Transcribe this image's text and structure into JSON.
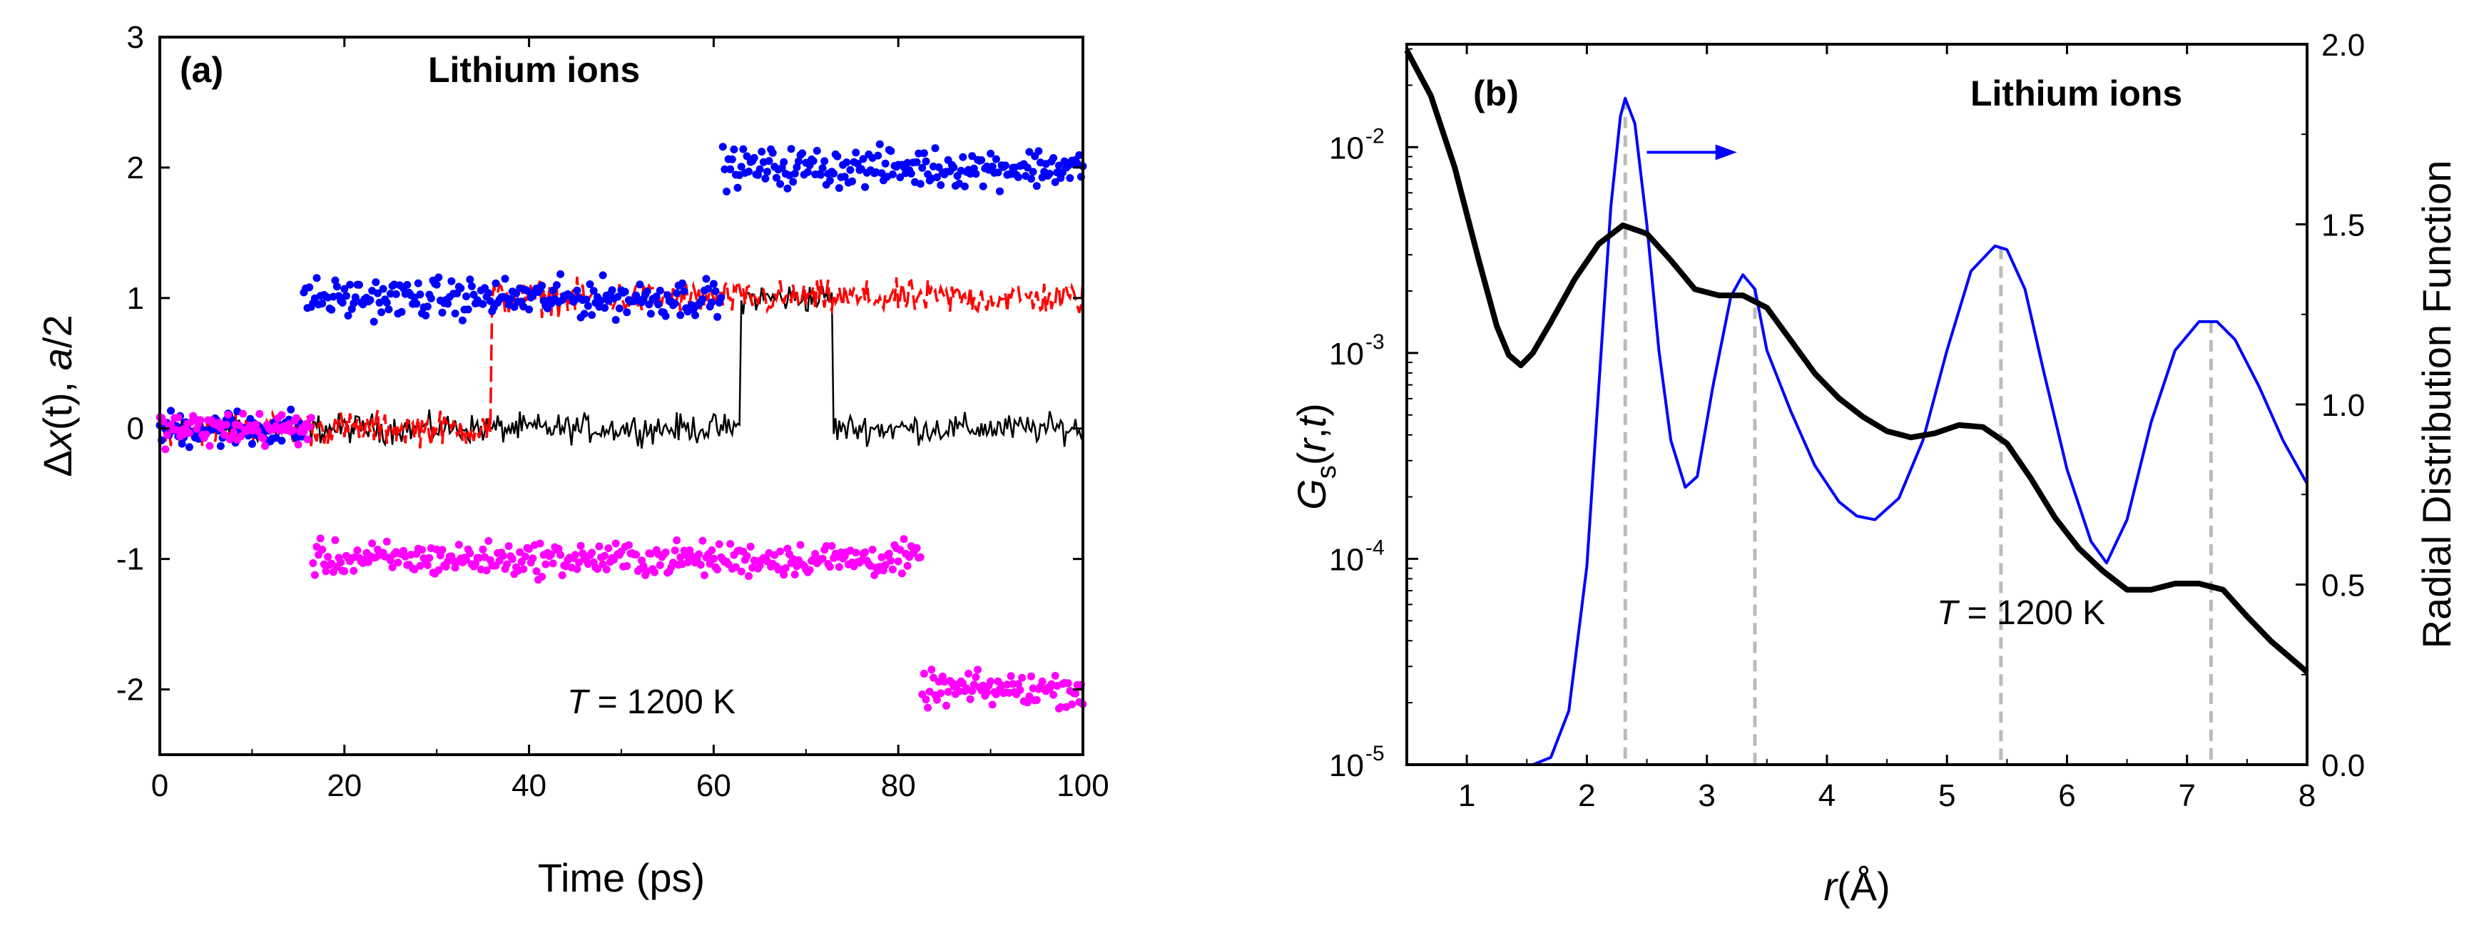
{
  "chart_data": [
    {
      "panel": "(a)",
      "type": "line",
      "title": "Lithium ions",
      "annotation": "T = 1200 K",
      "annotation_parts": {
        "var": "T",
        "rest": " = 1200 K"
      },
      "xlabel": "Time (ps)",
      "ylabel_parts": {
        "pre": "Δ",
        "x": "x",
        "post": "(t), ",
        "a": "a",
        "tail": "/2"
      },
      "xlim": [
        0,
        100
      ],
      "ylim": [
        -2.5,
        3
      ],
      "xticks": [
        0,
        20,
        40,
        60,
        80,
        100
      ],
      "yticks": [
        -2,
        -1,
        0,
        1,
        2,
        3
      ],
      "grid": false,
      "series": [
        {
          "name": "black",
          "color": "#000000",
          "style": "solid",
          "noise": 0.06,
          "segments": [
            [
              0,
              63,
              0
            ],
            [
              63,
              73,
              1.0
            ],
            [
              73,
              100,
              0
            ]
          ]
        },
        {
          "name": "red",
          "color": "#ff0000",
          "style": "dashed",
          "noise": 0.07,
          "segments": [
            [
              0,
              36,
              0
            ],
            [
              36,
              60.5,
              1.0
            ],
            [
              60.5,
              100,
              1.0
            ]
          ]
        },
        {
          "name": "blue",
          "color": "#0000ff",
          "style": "dotted",
          "noise": 0.08,
          "segments": [
            [
              0,
              15.5,
              0
            ],
            [
              15.5,
              61,
              1.0
            ],
            [
              61,
              100,
              2.0
            ]
          ]
        },
        {
          "name": "magenta",
          "color": "#ff00ff",
          "style": "dotted",
          "noise": 0.07,
          "segments": [
            [
              0,
              16.5,
              0
            ],
            [
              16.5,
              82.5,
              -1.0
            ],
            [
              82.5,
              100,
              -2.0
            ]
          ]
        }
      ]
    },
    {
      "panel": "(b)",
      "type": "line",
      "title": "Lithium ions",
      "annotation": "T = 1200 K",
      "annotation_parts": {
        "var": "T",
        "rest": " = 1200 K"
      },
      "xlabel_parts": {
        "r": "r",
        "rest": "(Å)"
      },
      "ylabel_left_parts": {
        "G": "G",
        "sub": "s",
        "open": "(",
        "r": "r",
        "comma": ",",
        "t": "t",
        "close": ")"
      },
      "ylabel_right": "Radial Distribution Function",
      "xlim": [
        0.5,
        8
      ],
      "xticks": [
        1,
        2,
        3,
        4,
        5,
        6,
        7,
        8
      ],
      "ylim_left_log": [
        -5,
        -1.5
      ],
      "yticks_left": [
        {
          "base": "10",
          "exp": "-5",
          "value": -5
        },
        {
          "base": "10",
          "exp": "-4",
          "value": -4
        },
        {
          "base": "10",
          "exp": "-3",
          "value": -3
        },
        {
          "base": "10",
          "exp": "-2",
          "value": -2
        }
      ],
      "ylim_right": [
        0,
        2.0
      ],
      "yticks_right": [
        "0.0",
        "0.5",
        "1.0",
        "1.5",
        "2.0"
      ],
      "grid": false,
      "peak_markers": [
        2.32,
        3.4,
        5.45,
        7.2
      ],
      "arrow": {
        "from_x": 2.5,
        "to_x": 3.25,
        "y_right": 1.7
      },
      "series": [
        {
          "name": "G_s(r,t)",
          "axis": "left-log",
          "color": "#000000",
          "points": [
            [
              0.5,
              -1.53
            ],
            [
              0.7,
              -1.75
            ],
            [
              0.9,
              -2.1
            ],
            [
              1.1,
              -2.55
            ],
            [
              1.25,
              -2.87
            ],
            [
              1.35,
              -3.01
            ],
            [
              1.45,
              -3.06
            ],
            [
              1.55,
              -3.0
            ],
            [
              1.7,
              -2.85
            ],
            [
              1.9,
              -2.64
            ],
            [
              2.1,
              -2.47
            ],
            [
              2.3,
              -2.38
            ],
            [
              2.5,
              -2.42
            ],
            [
              2.7,
              -2.55
            ],
            [
              2.9,
              -2.69
            ],
            [
              3.1,
              -2.72
            ],
            [
              3.3,
              -2.72
            ],
            [
              3.5,
              -2.78
            ],
            [
              3.7,
              -2.94
            ],
            [
              3.9,
              -3.1
            ],
            [
              4.1,
              -3.22
            ],
            [
              4.3,
              -3.31
            ],
            [
              4.5,
              -3.38
            ],
            [
              4.7,
              -3.41
            ],
            [
              4.9,
              -3.39
            ],
            [
              5.1,
              -3.35
            ],
            [
              5.3,
              -3.36
            ],
            [
              5.5,
              -3.44
            ],
            [
              5.7,
              -3.61
            ],
            [
              5.9,
              -3.8
            ],
            [
              6.1,
              -3.95
            ],
            [
              6.3,
              -4.06
            ],
            [
              6.5,
              -4.15
            ],
            [
              6.7,
              -4.15
            ],
            [
              6.9,
              -4.12
            ],
            [
              7.1,
              -4.12
            ],
            [
              7.3,
              -4.15
            ],
            [
              7.5,
              -4.28
            ],
            [
              7.7,
              -4.4
            ],
            [
              7.9,
              -4.5
            ],
            [
              8.0,
              -4.55
            ]
          ]
        },
        {
          "name": "Radial Distribution Function",
          "axis": "right",
          "color": "#0000ff",
          "points": [
            [
              1.55,
              0.0
            ],
            [
              1.7,
              0.02
            ],
            [
              1.85,
              0.15
            ],
            [
              2.0,
              0.55
            ],
            [
              2.1,
              1.05
            ],
            [
              2.2,
              1.55
            ],
            [
              2.28,
              1.8
            ],
            [
              2.32,
              1.85
            ],
            [
              2.4,
              1.78
            ],
            [
              2.5,
              1.5
            ],
            [
              2.6,
              1.15
            ],
            [
              2.7,
              0.9
            ],
            [
              2.82,
              0.77
            ],
            [
              2.92,
              0.8
            ],
            [
              3.05,
              1.05
            ],
            [
              3.2,
              1.3
            ],
            [
              3.3,
              1.36
            ],
            [
              3.4,
              1.32
            ],
            [
              3.5,
              1.15
            ],
            [
              3.7,
              0.98
            ],
            [
              3.9,
              0.83
            ],
            [
              4.1,
              0.73
            ],
            [
              4.25,
              0.69
            ],
            [
              4.4,
              0.68
            ],
            [
              4.6,
              0.74
            ],
            [
              4.8,
              0.9
            ],
            [
              5.0,
              1.15
            ],
            [
              5.2,
              1.37
            ],
            [
              5.4,
              1.44
            ],
            [
              5.5,
              1.43
            ],
            [
              5.65,
              1.32
            ],
            [
              5.8,
              1.1
            ],
            [
              6.0,
              0.82
            ],
            [
              6.2,
              0.62
            ],
            [
              6.33,
              0.56
            ],
            [
              6.5,
              0.68
            ],
            [
              6.7,
              0.95
            ],
            [
              6.9,
              1.15
            ],
            [
              7.1,
              1.23
            ],
            [
              7.25,
              1.23
            ],
            [
              7.4,
              1.18
            ],
            [
              7.6,
              1.05
            ],
            [
              7.8,
              0.9
            ],
            [
              8.0,
              0.78
            ]
          ]
        }
      ]
    }
  ]
}
